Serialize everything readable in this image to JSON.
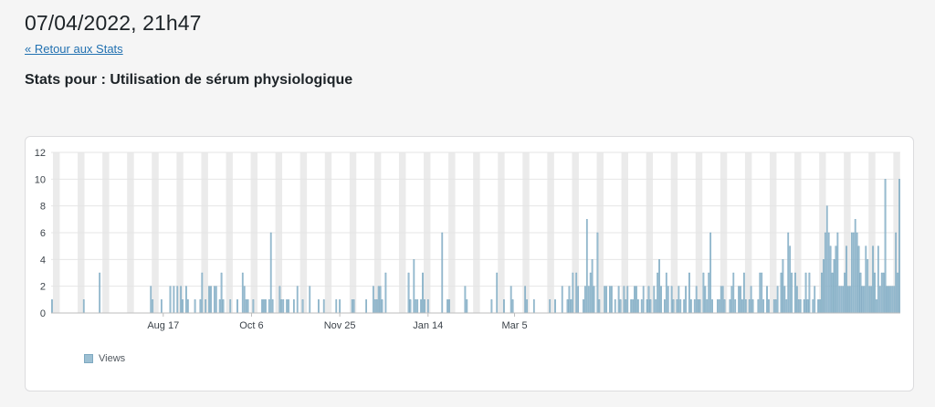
{
  "header": {
    "datetime": "07/04/2022, 21h47",
    "back_link": "« Retour aux Stats",
    "stats_title": "Stats pour : Utilisation de sérum physiologique"
  },
  "colors": {
    "bar": "#9dc0d3",
    "bar_stroke": "#6f9fba",
    "stripe": "#ebebeb",
    "grid": "#e6e6e6"
  },
  "chart_data": {
    "type": "bar",
    "ylim": [
      0,
      12
    ],
    "y_ticks": [
      "0",
      "2",
      "4",
      "6",
      "8",
      "10",
      "12"
    ],
    "x_tick_labels": [
      {
        "label": "Aug 17",
        "index": 63
      },
      {
        "label": "Oct 6",
        "index": 113
      },
      {
        "label": "Nov 25",
        "index": 163
      },
      {
        "label": "Jan 14",
        "index": 213
      },
      {
        "label": "Mar 5",
        "index": 262
      }
    ],
    "legend": [
      "Views"
    ],
    "series": [
      {
        "name": "Views",
        "values": [
          1,
          0,
          0,
          0,
          0,
          0,
          0,
          0,
          0,
          0,
          0,
          0,
          0,
          0,
          0,
          0,
          0,
          0,
          1,
          0,
          0,
          0,
          0,
          0,
          0,
          0,
          0,
          3,
          0,
          0,
          0,
          0,
          0,
          0,
          0,
          0,
          0,
          0,
          0,
          0,
          0,
          0,
          0,
          0,
          0,
          0,
          0,
          0,
          0,
          0,
          0,
          0,
          0,
          0,
          0,
          0,
          2,
          1,
          0,
          0,
          0,
          0,
          1,
          0,
          0,
          0,
          0,
          2,
          0,
          2,
          0,
          2,
          0,
          2,
          1,
          0,
          2,
          1,
          0,
          0,
          0,
          1,
          0,
          0,
          1,
          3,
          0,
          1,
          0,
          2,
          2,
          0,
          2,
          2,
          0,
          1,
          3,
          1,
          0,
          0,
          0,
          1,
          0,
          0,
          0,
          1,
          0,
          0,
          3,
          2,
          1,
          1,
          0,
          0,
          1,
          0,
          0,
          0,
          0,
          1,
          1,
          1,
          0,
          1,
          6,
          1,
          0,
          0,
          0,
          2,
          1,
          1,
          0,
          1,
          1,
          0,
          0,
          1,
          0,
          2,
          0,
          0,
          1,
          0,
          0,
          0,
          2,
          0,
          0,
          0,
          0,
          1,
          0,
          0,
          1,
          0,
          0,
          0,
          0,
          0,
          0,
          1,
          0,
          1,
          0,
          0,
          0,
          0,
          0,
          0,
          1,
          1,
          0,
          0,
          0,
          0,
          0,
          0,
          1,
          0,
          0,
          0,
          2,
          1,
          1,
          2,
          2,
          1,
          0,
          3,
          0,
          0,
          0,
          0,
          0,
          0,
          0,
          0,
          0,
          0,
          0,
          0,
          3,
          1,
          0,
          4,
          1,
          1,
          0,
          1,
          3,
          1,
          0,
          1,
          0,
          0,
          0,
          0,
          0,
          0,
          0,
          6,
          0,
          0,
          1,
          1,
          0,
          0,
          0,
          0,
          0,
          0,
          0,
          0,
          2,
          1,
          0,
          0,
          0,
          0,
          0,
          0,
          0,
          0,
          0,
          0,
          0,
          0,
          0,
          1,
          0,
          0,
          3,
          0,
          0,
          0,
          1,
          0,
          0,
          0,
          2,
          1,
          0,
          0,
          0,
          0,
          0,
          0,
          2,
          1,
          0,
          0,
          0,
          1,
          0,
          0,
          0,
          0,
          0,
          0,
          0,
          0,
          1,
          0,
          0,
          1,
          0,
          0,
          0,
          2,
          0,
          0,
          1,
          2,
          1,
          3,
          0,
          3,
          2,
          0,
          0,
          1,
          2,
          7,
          2,
          3,
          4,
          2,
          0,
          6,
          1,
          0,
          0,
          2,
          2,
          0,
          2,
          2,
          0,
          1,
          0,
          2,
          1,
          0,
          2,
          1,
          2,
          0,
          1,
          1,
          2,
          2,
          1,
          0,
          1,
          2,
          0,
          1,
          2,
          1,
          0,
          2,
          1,
          3,
          4,
          2,
          0,
          1,
          3,
          2,
          0,
          2,
          1,
          0,
          1,
          2,
          1,
          0,
          1,
          2,
          0,
          3,
          1,
          0,
          1,
          2,
          1,
          1,
          0,
          3,
          2,
          1,
          3,
          6,
          1,
          0,
          0,
          1,
          1,
          2,
          2,
          1,
          0,
          0,
          1,
          2,
          3,
          1,
          0,
          2,
          2,
          1,
          3,
          1,
          0,
          1,
          2,
          1,
          0,
          0,
          1,
          3,
          3,
          1,
          0,
          2,
          1,
          0,
          0,
          1,
          1,
          2,
          0,
          3,
          4,
          2,
          1,
          6,
          5,
          3,
          0,
          3,
          2,
          1,
          1,
          0,
          1,
          3,
          1,
          3,
          0,
          1,
          2,
          0,
          1,
          1,
          3,
          4,
          6,
          8,
          6,
          5,
          3,
          4,
          5,
          6,
          2,
          2,
          2,
          3,
          5,
          2,
          2,
          6,
          6,
          7,
          6,
          5,
          3,
          2,
          2,
          5,
          4,
          2,
          2,
          5,
          3,
          1,
          5,
          2,
          3,
          3,
          10,
          2,
          2,
          2,
          2,
          2,
          6,
          3,
          10
        ]
      }
    ]
  }
}
